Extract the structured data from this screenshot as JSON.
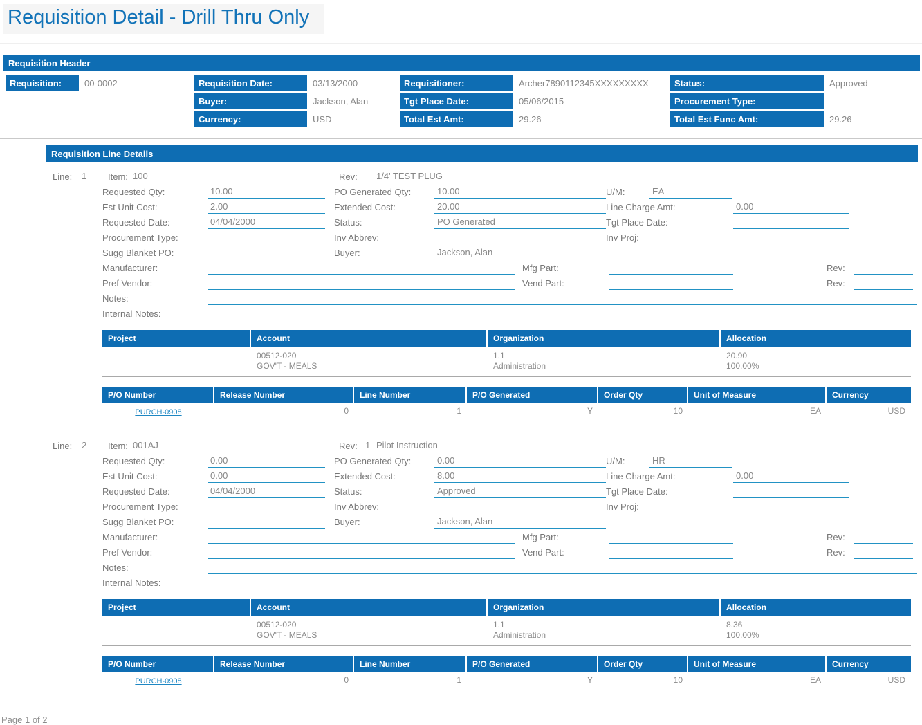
{
  "page": {
    "title": "Requisition Detail - Drill Thru Only",
    "footer": "Page 1 of 2"
  },
  "colors": {
    "bar_blue": "#0E6DB3",
    "underline_blue": "#2292C4",
    "link_blue": "#1E87C3",
    "value_gray": "#878787"
  },
  "header": {
    "section_title": "Requisition Header",
    "fields": {
      "requisition": {
        "label": "Requisition:",
        "value": "00-0002"
      },
      "requisition_date": {
        "label": "Requisition Date:",
        "value": "03/13/2000"
      },
      "requisitioner": {
        "label": "Requisitioner:",
        "value": "Archer7890112345XXXXXXXXX"
      },
      "status": {
        "label": "Status:",
        "value": "Approved"
      },
      "buyer": {
        "label": "Buyer:",
        "value": "Jackson, Alan"
      },
      "tgt_place_date": {
        "label": "Tgt Place Date:",
        "value": "05/06/2015"
      },
      "procurement_type": {
        "label": "Procurement Type:",
        "value": ""
      },
      "currency": {
        "label": "Currency:",
        "value": "USD"
      },
      "total_est_amt": {
        "label": "Total Est Amt:",
        "value": "29.26"
      },
      "total_est_func_amt": {
        "label": "Total Est Func Amt:",
        "value": "29.26"
      }
    }
  },
  "lines_section_title": "Requisition Line Details",
  "labels": {
    "line": "Line:",
    "item": "Item:",
    "rev": "Rev:",
    "requested_qty": "Requested Qty:",
    "po_generated_qty": "PO Generated Qty:",
    "um": "U/M:",
    "est_unit_cost": "Est Unit Cost:",
    "extended_cost": "Extended Cost:",
    "line_charge_amt": "Line Charge Amt:",
    "requested_date": "Requested Date:",
    "status": "Status:",
    "tgt_place_date": "Tgt Place Date:",
    "procurement_type": "Procurement Type:",
    "inv_abbrev": "Inv Abbrev:",
    "inv_proj": "Inv Proj:",
    "sugg_blanket_po": "Sugg Blanket PO:",
    "buyer": "Buyer:",
    "manufacturer": "Manufacturer:",
    "mfg_part": "Mfg Part:",
    "pref_vendor": "Pref Vendor:",
    "vend_part": "Vend Part:",
    "notes": "Notes:",
    "internal_notes": "Internal Notes:"
  },
  "alloc_table": {
    "headers": [
      "Project",
      "Account",
      "Organization",
      "Allocation"
    ]
  },
  "po_table": {
    "headers": [
      "P/O Number",
      "Release Number",
      "Line Number",
      "P/O Generated",
      "Order Qty",
      "Unit of Measure",
      "Currency"
    ]
  },
  "lines": [
    {
      "line": "1",
      "item": "100",
      "rev": "",
      "description": "1/4' TEST PLUG",
      "requested_qty": "10.00",
      "po_generated_qty": "10.00",
      "um": "EA",
      "est_unit_cost": "2.00",
      "extended_cost": "20.00",
      "line_charge_amt": "0.00",
      "requested_date": "04/04/2000",
      "status": "PO Generated",
      "tgt_place_date": "",
      "procurement_type": "",
      "inv_abbrev": "",
      "inv_proj": "",
      "sugg_blanket_po": "",
      "buyer": "Jackson, Alan",
      "manufacturer": "",
      "mfg_part": "",
      "mfg_rev": "",
      "pref_vendor": "",
      "vend_part": "",
      "vend_rev": "",
      "notes": "",
      "internal_notes": "",
      "allocation": {
        "project": [
          "",
          ""
        ],
        "account": [
          "00512-020",
          "GOV'T - MEALS"
        ],
        "organization": [
          "1.1",
          "Administration"
        ],
        "allocation": [
          "20.90",
          "100.00%"
        ]
      },
      "po_rows": [
        {
          "po_number": "PURCH-0908",
          "release_number": "0",
          "line_number": "1",
          "po_generated": "Y",
          "order_qty": "10",
          "unit_of_measure": "EA",
          "currency": "USD"
        }
      ]
    },
    {
      "line": "2",
      "item": "001AJ",
      "rev": "1",
      "description": "Pilot Instruction",
      "requested_qty": "0.00",
      "po_generated_qty": "0.00",
      "um": "HR",
      "est_unit_cost": "0.00",
      "extended_cost": "8.00",
      "line_charge_amt": "0.00",
      "requested_date": "04/04/2000",
      "status": "Approved",
      "tgt_place_date": "",
      "procurement_type": "",
      "inv_abbrev": "",
      "inv_proj": "",
      "sugg_blanket_po": "",
      "buyer": "Jackson, Alan",
      "manufacturer": "",
      "mfg_part": "",
      "mfg_rev": "",
      "pref_vendor": "",
      "vend_part": "",
      "vend_rev": "",
      "notes": "",
      "internal_notes": "",
      "allocation": {
        "project": [
          "",
          ""
        ],
        "account": [
          "00512-020",
          "GOV'T - MEALS"
        ],
        "organization": [
          "1.1",
          "Administration"
        ],
        "allocation": [
          "8.36",
          "100.00%"
        ]
      },
      "po_rows": [
        {
          "po_number": "PURCH-0908",
          "release_number": "0",
          "line_number": "1",
          "po_generated": "Y",
          "order_qty": "10",
          "unit_of_measure": "EA",
          "currency": "USD"
        }
      ]
    }
  ]
}
